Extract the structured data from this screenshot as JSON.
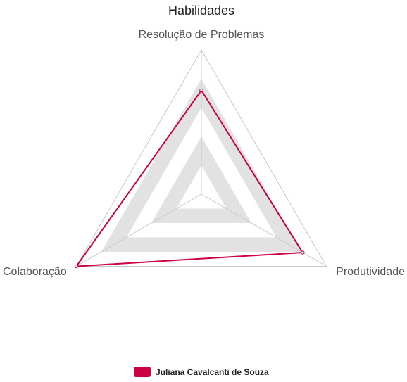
{
  "chart_data": {
    "type": "radar",
    "title": "Habilidades",
    "axes": [
      "Resolução de Problemas",
      "Produtividade",
      "Colaboração"
    ],
    "rlim": [
      0,
      1
    ],
    "rings": 5,
    "series": [
      {
        "name": "Juliana Cavalcanti de Souza",
        "values": [
          0.72,
          0.81,
          1.0
        ],
        "color": "#cc0044"
      }
    ],
    "legend": "bottom"
  },
  "colors": {
    "band_fill": "#e2e2e2",
    "grid_line": "#c8c8c8"
  }
}
